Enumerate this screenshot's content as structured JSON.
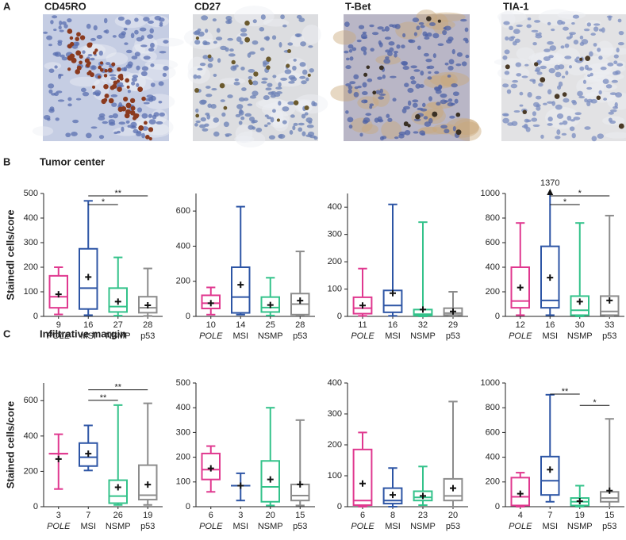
{
  "panel_a": {
    "label": "A",
    "images": [
      "CD45RO",
      "CD27",
      "T-Bet",
      "TIA-1"
    ]
  },
  "panel_b": {
    "label": "B",
    "title": "Tumor center"
  },
  "panel_c": {
    "label": "C",
    "title": "Infiltrative margin"
  },
  "chart_data": [
    {
      "type": "box",
      "ylabel": "Stainedl cells/core",
      "categories": [
        "POLE",
        "MSI",
        "NSMP",
        "p53"
      ],
      "n": [
        9,
        16,
        27,
        28
      ],
      "colors": [
        "#e0388f",
        "#2d55a5",
        "#33c28a",
        "#8c8c8c"
      ],
      "ylim": [
        0,
        500
      ],
      "yticks": [
        0,
        100,
        200,
        300,
        400,
        500
      ],
      "boxes": [
        {
          "whislo": 8,
          "q1": 35,
          "med": 80,
          "q3": 165,
          "whishi": 200,
          "mean": 90
        },
        {
          "whislo": 5,
          "q1": 30,
          "med": 115,
          "q3": 275,
          "whishi": 470,
          "mean": 160
        },
        {
          "whislo": 3,
          "q1": 18,
          "med": 40,
          "q3": 115,
          "whishi": 240,
          "mean": 60
        },
        {
          "whislo": 2,
          "q1": 15,
          "med": 35,
          "q3": 80,
          "whishi": 195,
          "mean": 45
        }
      ],
      "significance": [
        {
          "between": [
            "MSI",
            "NSMP"
          ],
          "label": "*"
        },
        {
          "between": [
            "MSI",
            "p53"
          ],
          "label": "**"
        }
      ]
    },
    {
      "type": "box",
      "categories": [
        "POLE",
        "MSI",
        "NSMP",
        "p53"
      ],
      "n": [
        10,
        14,
        25,
        28
      ],
      "colors": [
        "#e0388f",
        "#2d55a5",
        "#33c28a",
        "#8c8c8c"
      ],
      "ylim": [
        0,
        700
      ],
      "yticks": [
        0,
        200,
        400,
        600
      ],
      "boxes": [
        {
          "whislo": 10,
          "q1": 45,
          "med": 75,
          "q3": 120,
          "whishi": 165,
          "mean": 75
        },
        {
          "whislo": 10,
          "q1": 20,
          "med": 110,
          "q3": 280,
          "whishi": 625,
          "mean": 180
        },
        {
          "whislo": 5,
          "q1": 25,
          "med": 50,
          "q3": 110,
          "whishi": 220,
          "mean": 65
        },
        {
          "whislo": 5,
          "q1": 10,
          "med": 70,
          "q3": 130,
          "whishi": 370,
          "mean": 90
        }
      ]
    },
    {
      "type": "box",
      "categories": [
        "POLE",
        "MSI",
        "NSMP",
        "p53"
      ],
      "n": [
        11,
        16,
        32,
        29
      ],
      "colors": [
        "#e0388f",
        "#2d55a5",
        "#33c28a",
        "#8c8c8c"
      ],
      "ylim": [
        0,
        450
      ],
      "yticks": [
        0,
        100,
        200,
        300,
        400
      ],
      "boxes": [
        {
          "whislo": 2,
          "q1": 10,
          "med": 30,
          "q3": 70,
          "whishi": 175,
          "mean": 40
        },
        {
          "whislo": 2,
          "q1": 15,
          "med": 40,
          "q3": 95,
          "whishi": 410,
          "mean": 85
        },
        {
          "whislo": 0,
          "q1": 3,
          "med": 8,
          "q3": 25,
          "whishi": 345,
          "mean": 25
        },
        {
          "whislo": 0,
          "q1": 5,
          "med": 12,
          "q3": 30,
          "whishi": 90,
          "mean": 18
        }
      ]
    },
    {
      "type": "box",
      "categories": [
        "POLE",
        "MSI",
        "NSMP",
        "p53"
      ],
      "n": [
        12,
        16,
        30,
        33
      ],
      "colors": [
        "#e0388f",
        "#2d55a5",
        "#33c28a",
        "#8c8c8c"
      ],
      "ylim": [
        0,
        1000
      ],
      "yticks": [
        0,
        200,
        400,
        600,
        800,
        1000
      ],
      "boxes": [
        {
          "whislo": 10,
          "q1": 70,
          "med": 125,
          "q3": 400,
          "whishi": 760,
          "mean": 235
        },
        {
          "whislo": 10,
          "q1": 70,
          "med": 130,
          "q3": 570,
          "whishi": 1370,
          "mean": 315
        },
        {
          "whislo": 0,
          "q1": 10,
          "med": 50,
          "q3": 165,
          "whishi": 760,
          "mean": 120
        },
        {
          "whislo": 0,
          "q1": 10,
          "med": 40,
          "q3": 165,
          "whishi": 820,
          "mean": 130
        }
      ],
      "significance": [
        {
          "between": [
            "MSI",
            "NSMP"
          ],
          "label": "*"
        },
        {
          "between": [
            "MSI",
            "p53"
          ],
          "label": "*"
        }
      ]
    },
    {
      "type": "box",
      "ylabel": "Stained cells/core",
      "categories": [
        "POLE",
        "MSI",
        "NSMP",
        "p53"
      ],
      "n": [
        3,
        7,
        26,
        19
      ],
      "colors": [
        "#e0388f",
        "#2d55a5",
        "#33c28a",
        "#8c8c8c"
      ],
      "ylim": [
        0,
        700
      ],
      "yticks": [
        0,
        200,
        400,
        600
      ],
      "boxes": [
        {
          "whislo": 100,
          "q1": 300,
          "med": 300,
          "q3": 300,
          "whishi": 410,
          "mean": 270
        },
        {
          "whislo": 205,
          "q1": 230,
          "med": 280,
          "q3": 360,
          "whishi": 460,
          "mean": 300
        },
        {
          "whislo": 10,
          "q1": 20,
          "med": 60,
          "q3": 150,
          "whishi": 575,
          "mean": 110
        },
        {
          "whislo": 10,
          "q1": 40,
          "med": 65,
          "q3": 235,
          "whishi": 585,
          "mean": 125
        }
      ],
      "significance": [
        {
          "between": [
            "MSI",
            "NSMP"
          ],
          "label": "**"
        },
        {
          "between": [
            "MSI",
            "p53"
          ],
          "label": "**"
        }
      ]
    },
    {
      "type": "box",
      "categories": [
        "POLE",
        "MSI",
        "NSMP",
        "p53"
      ],
      "n": [
        6,
        3,
        20,
        15
      ],
      "colors": [
        "#e0388f",
        "#2d55a5",
        "#33c28a",
        "#8c8c8c"
      ],
      "ylim": [
        0,
        500
      ],
      "yticks": [
        0,
        100,
        200,
        300,
        400,
        500
      ],
      "boxes": [
        {
          "whislo": 60,
          "q1": 110,
          "med": 150,
          "q3": 215,
          "whishi": 245,
          "mean": 155
        },
        {
          "whislo": 25,
          "q1": 85,
          "med": 85,
          "q3": 85,
          "whishi": 135,
          "mean": 85
        },
        {
          "whislo": 5,
          "q1": 20,
          "med": 80,
          "q3": 185,
          "whishi": 400,
          "mean": 110
        },
        {
          "whislo": 5,
          "q1": 25,
          "med": 45,
          "q3": 90,
          "whishi": 350,
          "mean": 90
        }
      ]
    },
    {
      "type": "box",
      "categories": [
        "POLE",
        "MSI",
        "NSMP",
        "p53"
      ],
      "n": [
        6,
        8,
        23,
        20
      ],
      "colors": [
        "#e0388f",
        "#2d55a5",
        "#33c28a",
        "#8c8c8c"
      ],
      "ylim": [
        0,
        400
      ],
      "yticks": [
        0,
        100,
        200,
        300,
        400
      ],
      "boxes": [
        {
          "whislo": 0,
          "q1": 5,
          "med": 20,
          "q3": 185,
          "whishi": 240,
          "mean": 75
        },
        {
          "whislo": 0,
          "q1": 10,
          "med": 20,
          "q3": 60,
          "whishi": 125,
          "mean": 38
        },
        {
          "whislo": 5,
          "q1": 20,
          "med": 30,
          "q3": 50,
          "whishi": 130,
          "mean": 35
        },
        {
          "whislo": 0,
          "q1": 20,
          "med": 35,
          "q3": 90,
          "whishi": 340,
          "mean": 60
        }
      ]
    },
    {
      "type": "box",
      "categories": [
        "POLE",
        "MSI",
        "NSMP",
        "p53"
      ],
      "n": [
        4,
        7,
        19,
        15
      ],
      "colors": [
        "#e0388f",
        "#2d55a5",
        "#33c28a",
        "#8c8c8c"
      ],
      "ylim": [
        0,
        1000
      ],
      "yticks": [
        0,
        200,
        400,
        600,
        800,
        1000
      ],
      "boxes": [
        {
          "whislo": 0,
          "q1": 10,
          "med": 80,
          "q3": 235,
          "whishi": 275,
          "mean": 105
        },
        {
          "whislo": 40,
          "q1": 95,
          "med": 210,
          "q3": 405,
          "whishi": 905,
          "mean": 300
        },
        {
          "whislo": 0,
          "q1": 10,
          "med": 40,
          "q3": 70,
          "whishi": 170,
          "mean": 45
        },
        {
          "whislo": 0,
          "q1": 40,
          "med": 70,
          "q3": 120,
          "whishi": 710,
          "mean": 130
        }
      ],
      "significance": [
        {
          "between": [
            "MSI",
            "NSMP"
          ],
          "label": "**"
        },
        {
          "between": [
            "NSMP",
            "p53"
          ],
          "label": "*"
        }
      ]
    }
  ]
}
